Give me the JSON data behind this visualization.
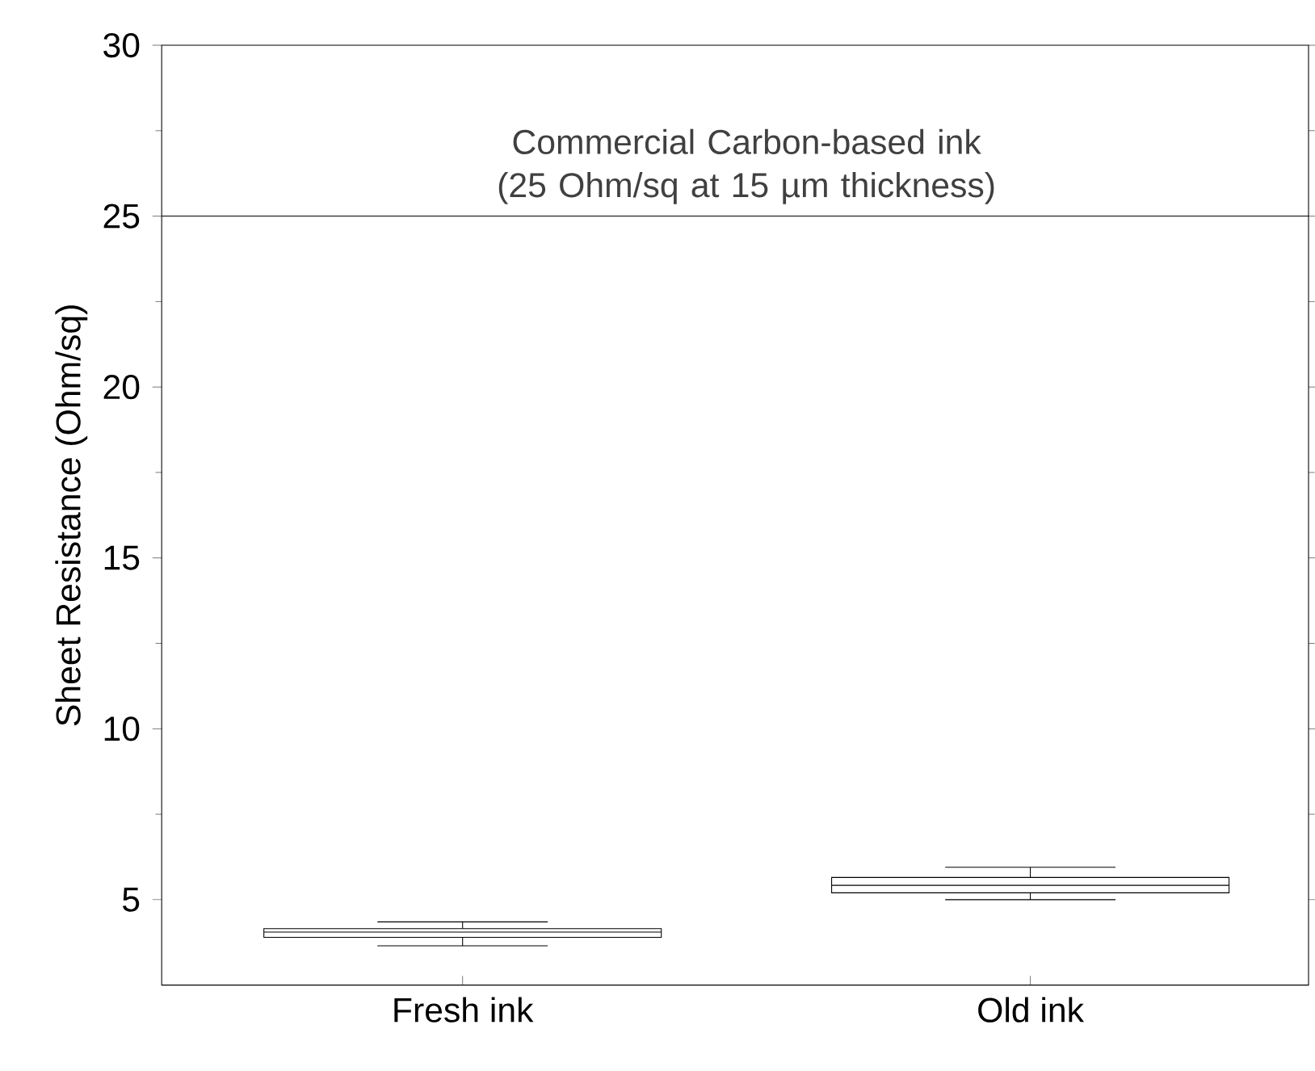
{
  "chart_data": {
    "type": "box",
    "ylabel": "Sheet Resistance (Ohm/sq)",
    "categories": [
      "Fresh ink",
      "Old ink"
    ],
    "boxes": [
      {
        "low": 3.65,
        "q1": 3.9,
        "median": 4.05,
        "q3": 4.15,
        "high": 4.35
      },
      {
        "low": 5.0,
        "q1": 5.2,
        "median": 5.42,
        "q3": 5.65,
        "high": 5.95
      }
    ],
    "color": "#000000",
    "ylim": [
      2.5,
      30
    ],
    "yticks": [
      5,
      10,
      15,
      20,
      25,
      30
    ],
    "ref_lines": [
      {
        "axis": "y",
        "value": 25,
        "label": "Commercial Carbon-based ink (25 Ohm/sq at 15 µm thickness)",
        "color": "#000000"
      }
    ]
  }
}
